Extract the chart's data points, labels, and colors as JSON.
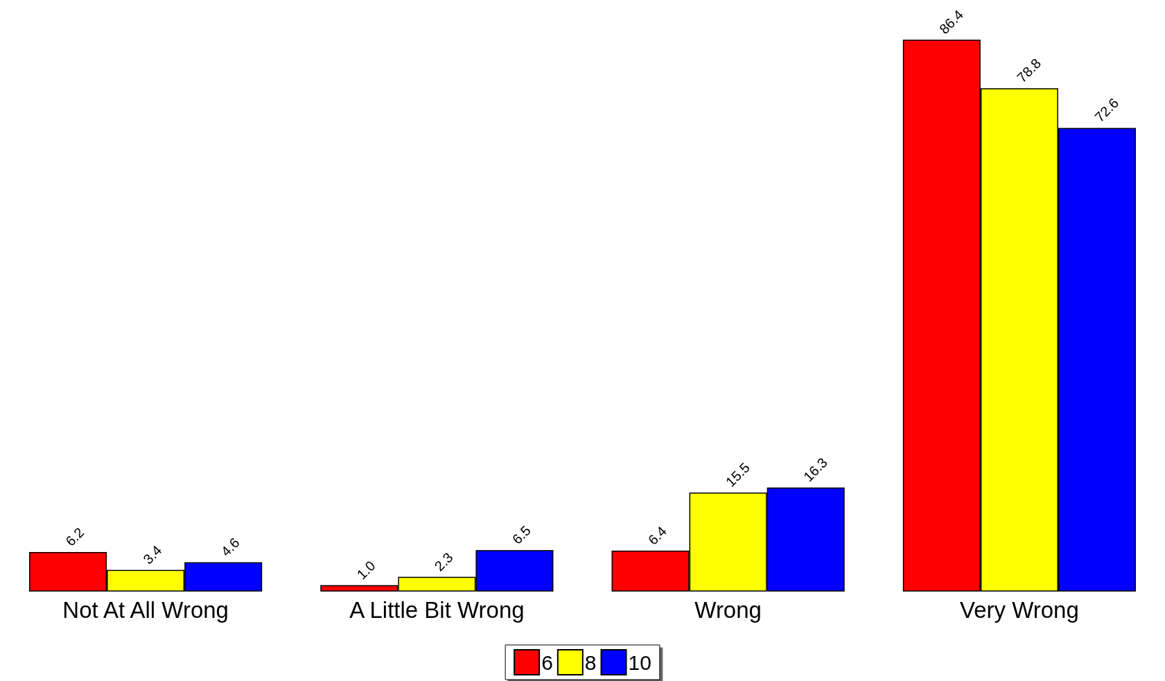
{
  "chart_data": {
    "type": "bar",
    "categories": [
      "Not At All Wrong",
      "A Little Bit Wrong",
      "Wrong",
      "Very Wrong"
    ],
    "series": [
      {
        "name": "6",
        "color": "#ff0000",
        "values": [
          6.2,
          1.0,
          6.4,
          86.4
        ],
        "value_labels": [
          "6.2",
          "1.0",
          "6.4",
          "86.4"
        ]
      },
      {
        "name": "8",
        "color": "#ffff00",
        "values": [
          3.4,
          2.3,
          15.5,
          78.8
        ],
        "value_labels": [
          "3.4",
          "2.3",
          "15.5",
          "78.8"
        ]
      },
      {
        "name": "10",
        "color": "#0000ff",
        "values": [
          4.6,
          6.5,
          16.3,
          72.6
        ],
        "value_labels": [
          "4.6",
          "6.5",
          "16.3",
          "72.6"
        ]
      }
    ],
    "legend": "bottom",
    "grid": false
  }
}
